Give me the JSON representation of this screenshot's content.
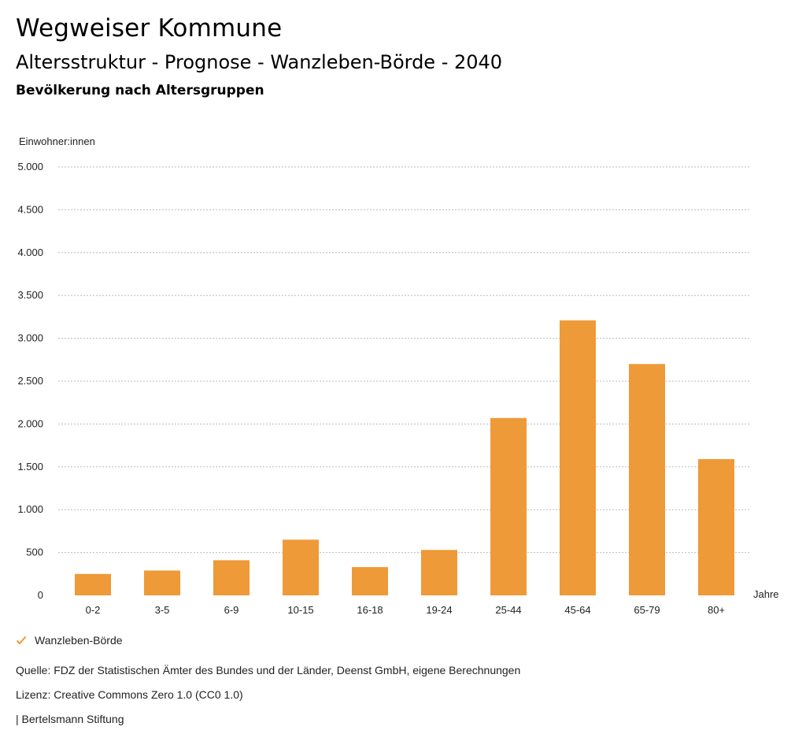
{
  "header": {
    "title": "Wegweiser Kommune",
    "subtitle": "Altersstruktur - Prognose - Wanzleben-Börde - 2040",
    "heading": "Bevölkerung nach Altersgruppen"
  },
  "chart_data": {
    "type": "bar",
    "ylabel": "Einwohner:innen",
    "xlabel": "Jahre",
    "ylim": [
      0,
      5000
    ],
    "yticks": [
      0,
      500,
      1000,
      1500,
      2000,
      2500,
      3000,
      3500,
      4000,
      4500,
      5000
    ],
    "ytick_labels": [
      "0",
      "500",
      "1.000",
      "1.500",
      "2.000",
      "2.500",
      "3.000",
      "3.500",
      "4.000",
      "4.500",
      "5.000"
    ],
    "grid": true,
    "categories": [
      "0-2",
      "3-5",
      "6-9",
      "10-15",
      "16-18",
      "19-24",
      "25-44",
      "45-64",
      "65-79",
      "80+"
    ],
    "series": [
      {
        "name": "Wanzleben-Börde",
        "color": "#ee9a38",
        "values": [
          250,
          290,
          410,
          650,
          330,
          530,
          2070,
          3210,
          2700,
          1590
        ]
      }
    ],
    "legend_position": "bottom-left"
  },
  "footer": {
    "source": "Quelle: FDZ der Statistischen Ämter des Bundes und der Länder, Deenst GmbH, eigene Berechnungen",
    "license": "Lizenz: Creative Commons Zero 1.0 (CC0 1.0)",
    "credit": "| Bertelsmann Stiftung"
  },
  "colors": {
    "bar": "#ee9a38",
    "grid": "#bbbbbb",
    "text": "#222222"
  }
}
